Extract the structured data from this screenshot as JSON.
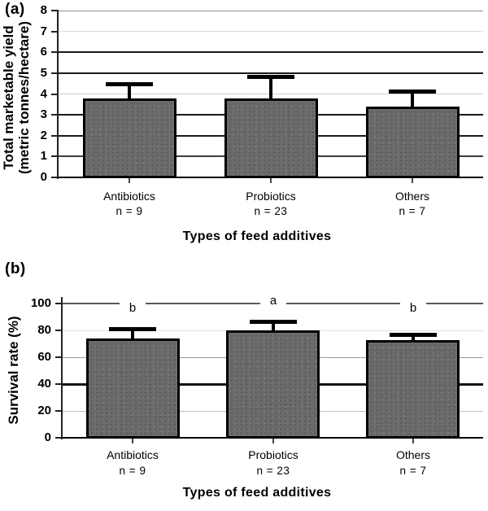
{
  "chart_data": [
    {
      "type": "bar",
      "panel_tag": "(a)",
      "categories": [
        "Antibiotics",
        "Probiotics",
        "Others"
      ],
      "n_labels": [
        "n = 9",
        "n = 23",
        "n = 7"
      ],
      "values": [
        3.8,
        3.8,
        3.4
      ],
      "error_bar_tops": [
        4.5,
        4.85,
        4.15
      ],
      "sig_letters": [
        "",
        "",
        ""
      ],
      "ylabel_lines": [
        "Total marketable yield",
        "(metric tonnes/hectare)"
      ],
      "xlabel": "Types of feed additives",
      "ylim": [
        0,
        8
      ],
      "yticks": [
        0,
        1,
        2,
        3,
        4,
        5,
        6,
        7,
        8
      ],
      "bar_fill": "#6b6b6b",
      "bar_border": "#000000",
      "grid": "on",
      "legend": "none"
    },
    {
      "type": "bar",
      "panel_tag": "(b)",
      "categories": [
        "Antibiotics",
        "Probiotics",
        "Others"
      ],
      "n_labels": [
        "n = 9",
        "n = 23",
        "n = 7"
      ],
      "values": [
        74,
        80,
        73
      ],
      "error_bar_tops": [
        81.5,
        86.5,
        77
      ],
      "sig_letters": [
        "b",
        "a",
        "b"
      ],
      "ylabel_lines": [
        "Survival rate (%)"
      ],
      "xlabel": "Types of feed additives",
      "ylim": [
        0,
        100
      ],
      "yticks": [
        0,
        20,
        40,
        60,
        80,
        100
      ],
      "bar_fill": "#6b6b6b",
      "bar_border": "#000000",
      "grid": "on",
      "legend": "none"
    }
  ]
}
